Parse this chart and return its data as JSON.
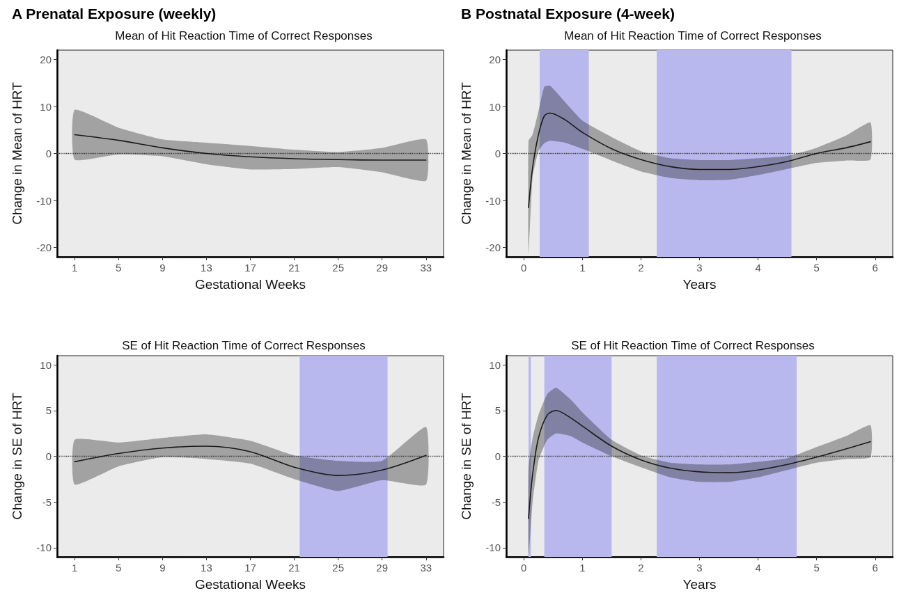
{
  "chart_data": [
    {
      "type": "line",
      "title": "A Prenatal Exposure (weekly)",
      "subtitle": "Mean of Hit Reaction Time of Correct Responses",
      "xlabel": "Gestational Weeks",
      "ylabel": "Change in Mean of HRT",
      "xlim": [
        -0.6,
        34.6
      ],
      "xticks": [
        1,
        5,
        9,
        13,
        17,
        21,
        25,
        29,
        33
      ],
      "ylim": [
        -22,
        22
      ],
      "yticks": [
        -20,
        -10,
        0,
        10,
        20
      ],
      "grid": false,
      "marker": "none",
      "line_style": "solid",
      "series": [
        {
          "color": "#1a1a1a",
          "x": [
            1,
            5,
            9,
            13,
            17,
            21,
            25,
            29,
            33
          ],
          "values": [
            4,
            2.8,
            1.2,
            0,
            -0.7,
            -1.1,
            -1.3,
            -1.4,
            -1.4
          ],
          "upper": [
            9.3,
            5.5,
            3,
            2.3,
            1.6,
            0.8,
            0.3,
            1.2,
            3
          ],
          "lower": [
            -1.3,
            -0.2,
            -0.6,
            -2.3,
            -3.4,
            -3.3,
            -2.9,
            -4,
            -5.8
          ]
        }
      ],
      "ref_lines": [
        {
          "axis": "y",
          "value": 0,
          "color": "#333333",
          "line_style": "dotted"
        }
      ]
    },
    {
      "type": "line",
      "title": "B Postnatal Exposure (4-week)",
      "subtitle": "Mean of Hit Reaction Time of Correct Responses",
      "xlabel": "Years",
      "ylabel": "Change in Mean of HRT",
      "xlim": [
        -0.3,
        6.3
      ],
      "xticks": [
        0,
        1,
        2,
        3,
        4,
        5,
        6
      ],
      "ylim": [
        -22,
        22
      ],
      "yticks": [
        -20,
        -10,
        0,
        10,
        20
      ],
      "grid": false,
      "marker": "none",
      "line_style": "solid",
      "series": [
        {
          "color": "#1a1a1a",
          "x": [
            0.08,
            0.15,
            0.25,
            0.35,
            0.45,
            0.7,
            1,
            1.5,
            2,
            2.5,
            3,
            3.5,
            4,
            4.5,
            5,
            5.5,
            5.92
          ],
          "values": [
            -11.5,
            -3,
            4,
            8,
            8.6,
            7.2,
            4.5,
            1,
            -1.3,
            -2.8,
            -3.4,
            -3.4,
            -2.8,
            -1.7,
            0,
            1.2,
            2.5
          ],
          "upper": [
            2.7,
            4,
            9,
            14.2,
            14.4,
            11,
            7,
            3.5,
            0.5,
            -1,
            -1.4,
            -1.4,
            -1,
            -0.5,
            1.2,
            3.8,
            6.6
          ],
          "lower": [
            -21.5,
            -5,
            0.5,
            2.2,
            2.7,
            2.3,
            1,
            -1.5,
            -3.8,
            -5.2,
            -5.7,
            -5.6,
            -4.6,
            -3.3,
            -2,
            -1.5,
            -1.3
          ]
        }
      ],
      "bands": [
        {
          "axis": "x",
          "from": 0.27,
          "to": 1.11,
          "color": "#b8b8ee"
        },
        {
          "axis": "x",
          "from": 2.27,
          "to": 4.57,
          "color": "#b8b8ee"
        }
      ],
      "ref_lines": [
        {
          "axis": "y",
          "value": 0,
          "color": "#333333",
          "line_style": "dotted"
        }
      ]
    },
    {
      "type": "line",
      "title": "SE of Hit Reaction Time of Correct Responses",
      "xlabel": "Gestational Weeks",
      "ylabel": "Change in SE of HRT",
      "xlim": [
        -0.6,
        34.6
      ],
      "xticks": [
        1,
        5,
        9,
        13,
        17,
        21,
        25,
        29,
        33
      ],
      "ylim": [
        -11,
        11
      ],
      "yticks": [
        -10,
        -5,
        0,
        5,
        10
      ],
      "grid": false,
      "marker": "none",
      "line_style": "solid",
      "series": [
        {
          "color": "#1a1a1a",
          "x": [
            1,
            5,
            9,
            13,
            17,
            21,
            25,
            29,
            33
          ],
          "values": [
            -0.6,
            0.3,
            0.9,
            1.1,
            0.5,
            -1.2,
            -2.1,
            -1.5,
            0.1
          ],
          "upper": [
            1.8,
            1.5,
            2,
            2.4,
            1.7,
            0.1,
            -0.5,
            -0.5,
            3.2
          ],
          "lower": [
            -3.1,
            -1.1,
            -0.1,
            -0.3,
            -0.8,
            -2.5,
            -3.8,
            -2.6,
            -3.1
          ]
        }
      ],
      "bands": [
        {
          "axis": "x",
          "from": 21.5,
          "to": 29.5,
          "color": "#b8b8ee"
        }
      ],
      "ref_lines": [
        {
          "axis": "y",
          "value": 0,
          "color": "#333333",
          "line_style": "dotted"
        }
      ]
    },
    {
      "type": "line",
      "title": "SE of Hit Reaction Time of Correct Responses",
      "xlabel": "Years",
      "ylabel": "Change in SE of HRT",
      "xlim": [
        -0.3,
        6.3
      ],
      "xticks": [
        0,
        1,
        2,
        3,
        4,
        5,
        6
      ],
      "ylim": [
        -11,
        11
      ],
      "yticks": [
        -10,
        -5,
        0,
        5,
        10
      ],
      "grid": false,
      "marker": "none",
      "line_style": "solid",
      "series": [
        {
          "color": "#1a1a1a",
          "x": [
            0.08,
            0.15,
            0.25,
            0.4,
            0.55,
            0.8,
            1,
            1.5,
            2,
            2.5,
            3,
            3.5,
            4,
            4.5,
            5,
            5.5,
            5.92
          ],
          "values": [
            -6.8,
            -2,
            2,
            4.5,
            5,
            4.2,
            3.3,
            1.1,
            -0.4,
            -1.3,
            -1.7,
            -1.8,
            -1.5,
            -0.9,
            -0.1,
            0.8,
            1.6
          ],
          "upper": [
            -1.3,
            2,
            4.5,
            6.8,
            7.5,
            6.2,
            4.8,
            1.8,
            0.1,
            -0.7,
            -0.9,
            -0.9,
            -0.6,
            -0.2,
            1,
            2.2,
            3.4
          ],
          "lower": [
            -10.9,
            -5,
            -0.5,
            1.8,
            2.5,
            2.2,
            1.5,
            0,
            -1.2,
            -2.3,
            -2.8,
            -2.8,
            -2.3,
            -1.5,
            -0.7,
            -0.3,
            -0.1
          ]
        }
      ],
      "bands": [
        {
          "axis": "x",
          "from": 0.08,
          "to": 0.12,
          "color": "#b8b8ee"
        },
        {
          "axis": "x",
          "from": 0.35,
          "to": 1.5,
          "color": "#b8b8ee"
        },
        {
          "axis": "x",
          "from": 2.27,
          "to": 4.66,
          "color": "#b8b8ee"
        }
      ],
      "ref_lines": [
        {
          "axis": "y",
          "value": 0,
          "color": "#333333",
          "line_style": "dotted"
        }
      ]
    }
  ]
}
